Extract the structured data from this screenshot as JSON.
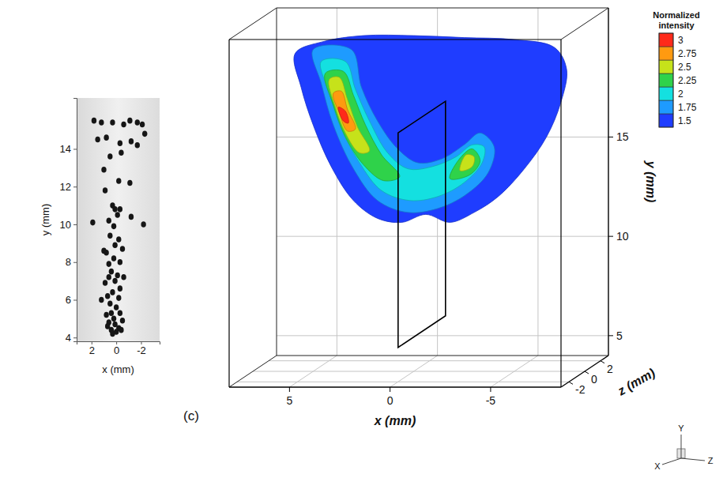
{
  "chart_data": [
    {
      "type": "scatter",
      "marker": "blob",
      "color": "#161616",
      "x_label": "x (mm)",
      "y_label": "y (mm)",
      "xlim": [
        3.2,
        -3.5
      ],
      "ylim": [
        3.8,
        16.7
      ],
      "xticks": [
        2,
        0,
        -2
      ],
      "yticks": [
        4,
        6,
        8,
        10,
        12,
        14
      ],
      "x": [
        1.8,
        1.2,
        0.3,
        -0.6,
        -1.1,
        -1.7,
        -2.1,
        1.5,
        0.8,
        -0.3,
        -1.2,
        -1.7,
        -2.3,
        0.5,
        -0.4,
        1.0,
        -0.2,
        -1.1,
        0.9,
        0.3,
        0.1,
        -0.3,
        -0.1,
        0.6,
        -1.2,
        -2.2,
        1.9,
        0.2,
        0.5,
        -0.2,
        0.1,
        -0.5,
        0.8,
        0.2,
        -0.3,
        0.6,
        1.0,
        0.4,
        -0.1,
        0.6,
        0.1,
        -0.6,
        0.9,
        -0.3,
        0.3,
        0.7,
        -0.2,
        1.2,
        0.5,
        0.0,
        0.4,
        -0.3,
        0.8,
        0.2,
        -0.5,
        0.6,
        0.1,
        -0.2,
        0.4,
        0.0,
        0.3,
        -0.4,
        0.7
      ],
      "y": [
        15.5,
        15.4,
        15.4,
        15.3,
        15.5,
        15.4,
        15.3,
        14.5,
        14.6,
        14.3,
        14.4,
        14.2,
        14.8,
        13.6,
        13.8,
        12.9,
        12.3,
        12.2,
        11.8,
        11.0,
        10.8,
        10.8,
        10.5,
        10.2,
        10.4,
        10.0,
        10.1,
        9.9,
        9.4,
        9.2,
        8.9,
        8.7,
        8.5,
        8.2,
        8.0,
        7.9,
        8.6,
        7.5,
        7.3,
        7.2,
        7.0,
        7.2,
        6.9,
        6.6,
        6.4,
        6.2,
        6.1,
        6.0,
        5.8,
        5.6,
        5.3,
        5.3,
        5.2,
        5.0,
        4.9,
        4.8,
        4.7,
        4.5,
        4.4,
        4.3,
        4.2,
        4.4,
        4.6
      ]
    },
    {
      "type": "surface3d",
      "panel_label": "(c)",
      "grid": true,
      "x_label": "x (mm)",
      "y_label": "y (mm)",
      "z_label": "z (mm)",
      "xlim": [
        8,
        -8.5
      ],
      "ylim": [
        4,
        21.5
      ],
      "zlim": [
        -3,
        3
      ],
      "xticks": [
        5,
        0,
        -5
      ],
      "yticks": [
        5,
        10,
        15
      ],
      "zticks": [
        2,
        0,
        -2
      ],
      "surface": [
        {
          "level": 1.5,
          "points": [
            [
              5.9,
              20.0
            ],
            [
              4.5,
              20.6
            ],
            [
              2.5,
              20.9
            ],
            [
              0,
              20.9
            ],
            [
              -2.5,
              20.8
            ],
            [
              -5,
              20.7
            ],
            [
              -7,
              20.3
            ],
            [
              -7.6,
              19.2
            ],
            [
              -7.3,
              17.5
            ],
            [
              -6.6,
              15.8
            ],
            [
              -5.5,
              14.2
            ],
            [
              -4.2,
              12.8
            ],
            [
              -3,
              12
            ],
            [
              -1.8,
              11.5
            ],
            [
              -0.6,
              11.9
            ],
            [
              0.6,
              11.5
            ],
            [
              1.8,
              11.7
            ],
            [
              3,
              12.6
            ],
            [
              4.1,
              14.3
            ],
            [
              5,
              16.4
            ],
            [
              5.6,
              18.3
            ]
          ]
        },
        {
          "level": 1.75,
          "points": [
            [
              5.0,
              20.2
            ],
            [
              4.6,
              18.5
            ],
            [
              4.0,
              16.4
            ],
            [
              3.0,
              14.2
            ],
            [
              1.8,
              12.6
            ],
            [
              0.3,
              12.0
            ],
            [
              -1.2,
              12.2
            ],
            [
              -2.6,
              12.9
            ],
            [
              -3.7,
              14.0
            ],
            [
              -4.0,
              15.3
            ],
            [
              -3.3,
              16.0
            ],
            [
              -2.5,
              15.4
            ],
            [
              -1.4,
              14.7
            ],
            [
              -0.2,
              14.5
            ],
            [
              0.8,
              15.2
            ],
            [
              1.8,
              16.6
            ],
            [
              2.6,
              18.3
            ],
            [
              3.1,
              20.2
            ]
          ]
        },
        {
          "level": 2,
          "points": [
            [
              4.6,
              19.6
            ],
            [
              4.2,
              18.0
            ],
            [
              3.6,
              16.2
            ],
            [
              2.7,
              14.5
            ],
            [
              1.6,
              13.1
            ],
            [
              0.2,
              12.6
            ],
            [
              -1.2,
              12.8
            ],
            [
              -2.5,
              13.5
            ],
            [
              -3.4,
              14.5
            ],
            [
              -3.5,
              15.3
            ],
            [
              -2.9,
              15.4
            ],
            [
              -2.1,
              14.8
            ],
            [
              -0.9,
              14.3
            ],
            [
              0.3,
              14.2
            ],
            [
              1.3,
              15.0
            ],
            [
              2.2,
              16.6
            ],
            [
              2.9,
              18.2
            ],
            [
              3.4,
              19.6
            ]
          ]
        },
        {
          "level": 2.25,
          "points": [
            [
              4.4,
              19.0
            ],
            [
              4.0,
              17.4
            ],
            [
              3.4,
              15.8
            ],
            [
              2.5,
              14.4
            ],
            [
              1.5,
              13.6
            ],
            [
              0.7,
              13.8
            ],
            [
              1.6,
              14.9
            ],
            [
              2.4,
              16.4
            ],
            [
              3.0,
              17.9
            ],
            [
              3.5,
              19.1
            ]
          ]
        },
        {
          "level": 2.25,
          "points": [
            [
              -1.8,
              13.7
            ],
            [
              -2.8,
              13.9
            ],
            [
              -3.3,
              14.6
            ],
            [
              -2.9,
              15.2
            ],
            [
              -2.2,
              14.6
            ]
          ]
        },
        {
          "level": 2.5,
          "points": [
            [
              4.2,
              18.7
            ],
            [
              3.9,
              17.3
            ],
            [
              3.4,
              16.0
            ],
            [
              2.7,
              15.0
            ],
            [
              2.2,
              15.1
            ],
            [
              2.8,
              16.3
            ],
            [
              3.3,
              17.7
            ],
            [
              3.7,
              18.8
            ]
          ]
        },
        {
          "level": 2.5,
          "points": [
            [
              -2.3,
              14.1
            ],
            [
              -2.9,
              14.3
            ],
            [
              -3.0,
              14.8
            ],
            [
              -2.6,
              14.9
            ]
          ]
        },
        {
          "level": 2.75,
          "points": [
            [
              4.0,
              18.0
            ],
            [
              3.7,
              17.0
            ],
            [
              3.3,
              16.1
            ],
            [
              2.9,
              16.2
            ],
            [
              3.3,
              17.2
            ],
            [
              3.6,
              18.1
            ]
          ]
        },
        {
          "level": 3,
          "points": [
            [
              3.75,
              17.3
            ],
            [
              3.5,
              16.6
            ],
            [
              3.25,
              16.5
            ],
            [
              3.4,
              17.1
            ]
          ]
        }
      ],
      "slice": {
        "x": -0.4,
        "y": [
          6,
          16.8
        ],
        "z": [
          -3,
          3
        ]
      },
      "colorbar": {
        "title": "Normalized intensity",
        "range": [
          1.375,
          3.125
        ],
        "ticks": [
          1.5,
          1.75,
          2,
          2.25,
          2.5,
          2.75,
          3
        ],
        "colors": [
          "#1f3dff",
          "#1e9bff",
          "#14e0e0",
          "#2fd24a",
          "#c6e21a",
          "#ff9a10",
          "#ff2a1a"
        ]
      },
      "triad_labels": [
        "X",
        "Y",
        "Z"
      ]
    }
  ]
}
